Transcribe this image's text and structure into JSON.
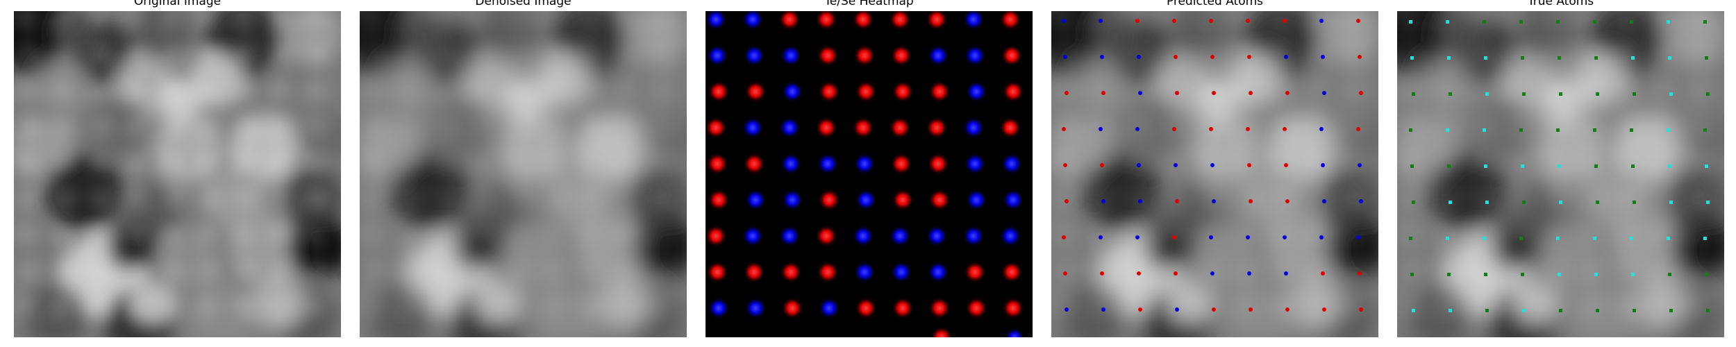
{
  "panels": [
    {
      "title": "Original Image"
    },
    {
      "title": "Denoised Image"
    },
    {
      "title": "Te/Se Heatmap"
    },
    {
      "title": "Predicted Atoms"
    },
    {
      "title": "True Atoms"
    }
  ],
  "colors": {
    "heatmap_te": "#ff2020",
    "heatmap_se": "#2020ff",
    "predicted_te": "#e00000",
    "predicted_se": "#0000e0",
    "true_a": "#20e0e0",
    "true_b": "#108010"
  }
}
